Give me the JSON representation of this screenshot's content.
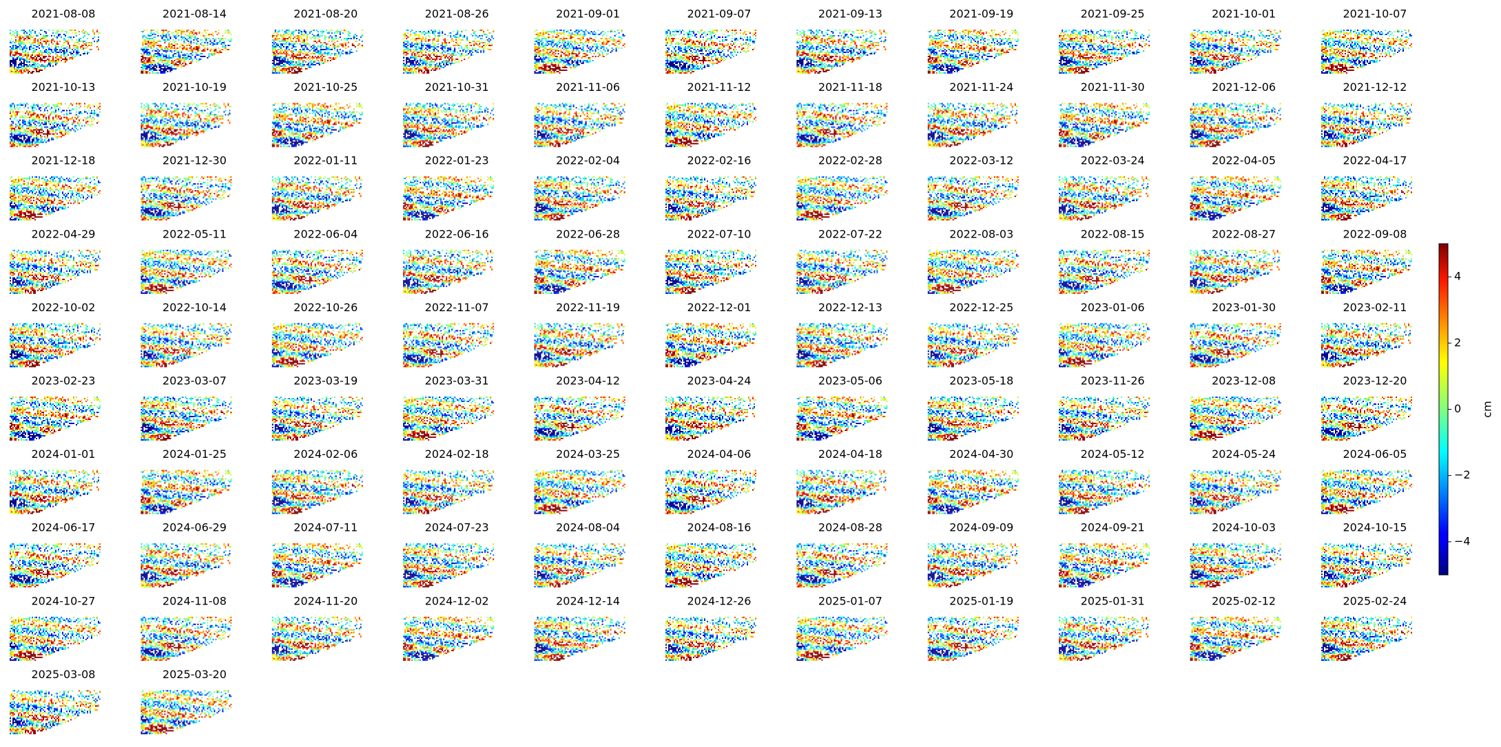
{
  "chart_data": {
    "type": "image-grid",
    "panels": [
      "2021-08-08",
      "2021-08-14",
      "2021-08-20",
      "2021-08-26",
      "2021-09-01",
      "2021-09-07",
      "2021-09-13",
      "2021-09-19",
      "2021-09-25",
      "2021-10-01",
      "2021-10-07",
      "2021-10-13",
      "2021-10-19",
      "2021-10-25",
      "2021-10-31",
      "2021-11-06",
      "2021-11-12",
      "2021-11-18",
      "2021-11-24",
      "2021-11-30",
      "2021-12-06",
      "2021-12-12",
      "2021-12-18",
      "2021-12-30",
      "2022-01-11",
      "2022-01-23",
      "2022-02-04",
      "2022-02-16",
      "2022-02-28",
      "2022-03-12",
      "2022-03-24",
      "2022-04-05",
      "2022-04-17",
      "2022-04-29",
      "2022-05-11",
      "2022-06-04",
      "2022-06-16",
      "2022-06-28",
      "2022-07-10",
      "2022-07-22",
      "2022-08-03",
      "2022-08-15",
      "2022-08-27",
      "2022-09-08",
      "2022-10-02",
      "2022-10-14",
      "2022-10-26",
      "2022-11-07",
      "2022-11-19",
      "2022-12-01",
      "2022-12-13",
      "2022-12-25",
      "2023-01-06",
      "2023-01-30",
      "2023-02-11",
      "2023-02-23",
      "2023-03-07",
      "2023-03-19",
      "2023-03-31",
      "2023-04-12",
      "2023-04-24",
      "2023-05-06",
      "2023-05-18",
      "2023-11-26",
      "2023-12-08",
      "2023-12-20",
      "2024-01-01",
      "2024-01-25",
      "2024-02-06",
      "2024-02-18",
      "2024-03-25",
      "2024-04-06",
      "2024-04-18",
      "2024-04-30",
      "2024-05-12",
      "2024-05-24",
      "2024-06-05",
      "2024-06-17",
      "2024-06-29",
      "2024-07-11",
      "2024-07-23",
      "2024-08-04",
      "2024-08-16",
      "2024-08-28",
      "2024-09-09",
      "2024-09-21",
      "2024-10-03",
      "2024-10-15",
      "2024-10-27",
      "2024-11-08",
      "2024-11-20",
      "2024-12-02",
      "2024-12-14",
      "2024-12-26",
      "2025-01-07",
      "2025-01-19",
      "2025-01-31",
      "2025-02-12",
      "2025-02-24",
      "2025-03-08",
      "2025-03-20"
    ],
    "colorbar": {
      "label": "cm",
      "lim": [
        -5,
        5
      ],
      "ticks": [
        {
          "value": -4,
          "label": "−4"
        },
        {
          "value": -2,
          "label": "−2"
        },
        0,
        2,
        4
      ]
    }
  }
}
